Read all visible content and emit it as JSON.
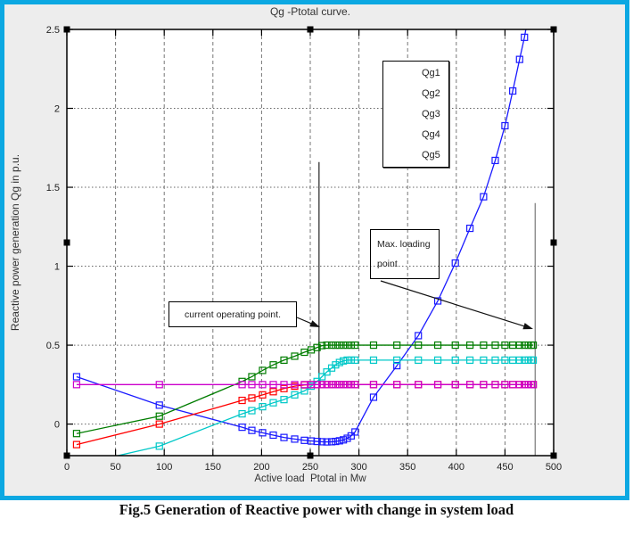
{
  "figure": {
    "title": "Qg -Ptotal curve.",
    "xlabel": "Active load  Ptotal in Mw",
    "ylabel": "Reactive power generation Qg in p.u.",
    "caption": "Fig.5 Generation of Reactive power with change in system load",
    "frame_color": "#0CA8E2",
    "background_color": "#EDEDED"
  },
  "annotations": {
    "current_operating": "current operating point.",
    "max_loading_line1": "Max. loading",
    "max_loading_line2": "point"
  },
  "chart_data": {
    "type": "line",
    "title": "Qg -Ptotal curve.",
    "xlabel": "Active load Ptotal in Mw",
    "ylabel": "Reactive power generation Qg in p.u.",
    "xlim": [
      0,
      500
    ],
    "ylim": [
      -0.2,
      2.5
    ],
    "x_ticks": [
      0,
      50,
      100,
      150,
      200,
      250,
      300,
      350,
      400,
      450,
      500
    ],
    "y_ticks": [
      0,
      0.5,
      1,
      1.5,
      2,
      2.5
    ],
    "grid": true,
    "legend_position": "upper-right-inside",
    "marker": "square",
    "series": [
      {
        "name": "Qg1",
        "color": "#1a1aff",
        "x": [
          10,
          95,
          180,
          190,
          201,
          212,
          223,
          234,
          244,
          251,
          257,
          262,
          267,
          272,
          276,
          280,
          284,
          288,
          292,
          296,
          315,
          339,
          361,
          381,
          399,
          414,
          428,
          440,
          450,
          458,
          465,
          470,
          472
        ],
        "y": [
          0.3,
          0.12,
          -0.02,
          -0.04,
          -0.055,
          -0.07,
          -0.085,
          -0.095,
          -0.103,
          -0.107,
          -0.11,
          -0.112,
          -0.113,
          -0.112,
          -0.11,
          -0.106,
          -0.1,
          -0.09,
          -0.075,
          -0.05,
          0.17,
          0.37,
          0.56,
          0.78,
          1.02,
          1.24,
          1.44,
          1.67,
          1.89,
          2.11,
          2.31,
          2.45,
          2.52
        ]
      },
      {
        "name": "Qg2",
        "color": "#007d00",
        "x": [
          10,
          95,
          180,
          190,
          201,
          212,
          223,
          234,
          244,
          251,
          257,
          262,
          267,
          272,
          276,
          280,
          284,
          288,
          292,
          296,
          315,
          339,
          361,
          381,
          399,
          414,
          428,
          440,
          450,
          458,
          465,
          470,
          474,
          477,
          479
        ],
        "y": [
          -0.06,
          0.05,
          0.27,
          0.3,
          0.34,
          0.375,
          0.405,
          0.43,
          0.455,
          0.47,
          0.485,
          0.497,
          0.5,
          0.5,
          0.5,
          0.5,
          0.5,
          0.5,
          0.5,
          0.5,
          0.5,
          0.5,
          0.5,
          0.5,
          0.5,
          0.5,
          0.5,
          0.5,
          0.5,
          0.5,
          0.5,
          0.5,
          0.5,
          0.5,
          0.5
        ]
      },
      {
        "name": "Qg3",
        "color": "#ff0000",
        "x": [
          10,
          95,
          180,
          190,
          201,
          212,
          223,
          234,
          244,
          251,
          257,
          262,
          267,
          272,
          276,
          280,
          284,
          288,
          292,
          296,
          315,
          339,
          361,
          381,
          399,
          414,
          428,
          440,
          450,
          458,
          465,
          470,
          474,
          477,
          479
        ],
        "y": [
          -0.13,
          0,
          0.15,
          0.165,
          0.185,
          0.205,
          0.225,
          0.24,
          0.248,
          0.25,
          0.25,
          0.25,
          0.25,
          0.25,
          0.25,
          0.25,
          0.25,
          0.25,
          0.25,
          0.25,
          0.25,
          0.25,
          0.25,
          0.25,
          0.25,
          0.25,
          0.25,
          0.25,
          0.25,
          0.25,
          0.25,
          0.25,
          0.25,
          0.25,
          0.25
        ]
      },
      {
        "name": "Qg4",
        "color": "#00c8c8",
        "x": [
          10,
          95,
          180,
          190,
          201,
          212,
          223,
          234,
          244,
          251,
          257,
          262,
          267,
          272,
          276,
          280,
          284,
          288,
          292,
          296,
          315,
          339,
          361,
          381,
          399,
          414,
          428,
          440,
          450,
          458,
          465,
          470,
          474,
          477,
          479
        ],
        "y": [
          -0.26,
          -0.14,
          0.065,
          0.085,
          0.11,
          0.135,
          0.155,
          0.185,
          0.21,
          0.24,
          0.27,
          0.3,
          0.33,
          0.355,
          0.375,
          0.39,
          0.4,
          0.405,
          0.405,
          0.405,
          0.405,
          0.405,
          0.405,
          0.405,
          0.405,
          0.405,
          0.405,
          0.405,
          0.405,
          0.405,
          0.405,
          0.405,
          0.405,
          0.405,
          0.405
        ]
      },
      {
        "name": "Qg5",
        "color": "#cc00cc",
        "x": [
          10,
          95,
          180,
          190,
          201,
          212,
          223,
          234,
          244,
          251,
          257,
          262,
          267,
          272,
          276,
          280,
          284,
          288,
          292,
          296,
          315,
          339,
          361,
          381,
          399,
          414,
          428,
          440,
          450,
          458,
          465,
          470,
          474,
          477,
          479
        ],
        "y": [
          0.25,
          0.25,
          0.25,
          0.25,
          0.25,
          0.25,
          0.25,
          0.25,
          0.25,
          0.25,
          0.25,
          0.25,
          0.25,
          0.25,
          0.25,
          0.25,
          0.25,
          0.25,
          0.25,
          0.25,
          0.25,
          0.25,
          0.25,
          0.25,
          0.25,
          0.25,
          0.25,
          0.25,
          0.25,
          0.25,
          0.25,
          0.25,
          0.25,
          0.25,
          0.25
        ]
      }
    ],
    "reference_lines": [
      {
        "x": 259,
        "y_top": 1.66,
        "color": "#222222",
        "meaning": "current operating point"
      },
      {
        "x": 481,
        "y_top": 1.4,
        "color": "#787878",
        "meaning": "max loading point"
      }
    ]
  }
}
